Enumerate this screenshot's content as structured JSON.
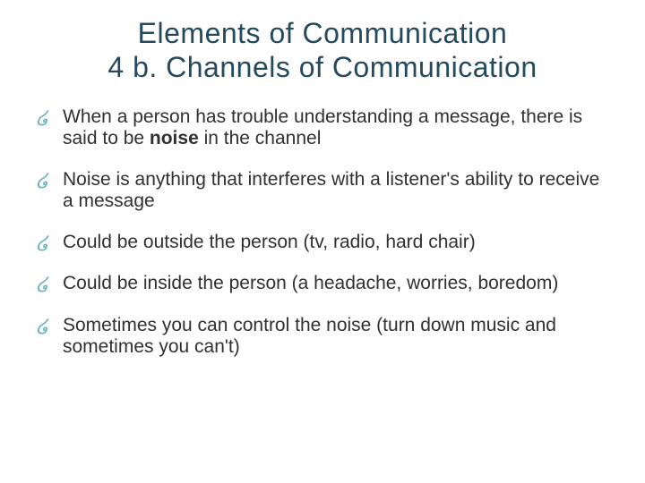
{
  "slide": {
    "title_line1": "Elements of Communication",
    "title_line2": "4 b. Channels of Communication",
    "title_color": "#254a5d",
    "title_fontsize": 32,
    "bullet_icon_glyph": "໒",
    "bullet_icon_color": "#6fb5b8",
    "body_color": "#303030",
    "body_fontsize": 21,
    "background_color": "#ffffff",
    "bullets": [
      {
        "runs": [
          {
            "text": "When a person has trouble understanding a message, there is said to be ",
            "bold": false
          },
          {
            "text": "noise",
            "bold": true
          },
          {
            "text": " in the channel",
            "bold": false
          }
        ]
      },
      {
        "runs": [
          {
            "text": "Noise is anything that interferes with a listener's ability to receive a message",
            "bold": false
          }
        ]
      },
      {
        "runs": [
          {
            "text": "Could be outside the person (tv, radio, hard chair)",
            "bold": false
          }
        ]
      },
      {
        "runs": [
          {
            "text": "Could be inside the person (a headache, worries, boredom)",
            "bold": false
          }
        ]
      },
      {
        "runs": [
          {
            "text": "Sometimes you can control the noise (turn down music and sometimes you can't)",
            "bold": false
          }
        ]
      }
    ]
  }
}
